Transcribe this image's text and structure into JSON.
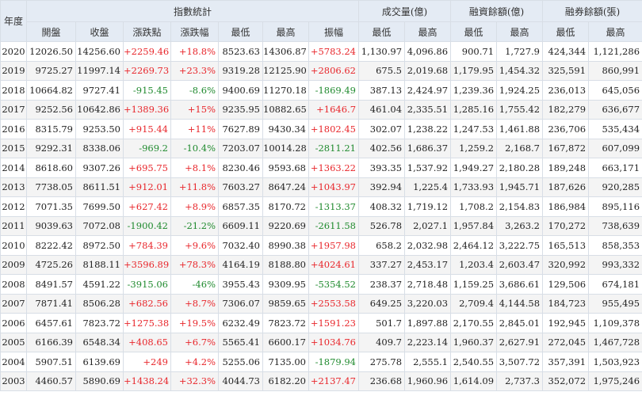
{
  "headers": {
    "year": "年度",
    "index_group": "指數統計",
    "volume_group": "成交量(億)",
    "margin_group": "融資餘額(億)",
    "short_group": "融券餘額(張)",
    "open": "開盤",
    "close": "收盤",
    "change_pts": "漲跌點",
    "change_pct": "漲跌幅",
    "low": "最低",
    "high": "最高",
    "amplitude": "振幅"
  },
  "colors": {
    "up": "#e8262b",
    "down": "#1f8a2e",
    "header_bg": "#e4ebf4",
    "stripe": "#f4f4f4"
  },
  "rows": [
    {
      "year": "2020",
      "open": "12026.50",
      "close": "14256.60",
      "chg": "+2259.46",
      "pct": "+18.8%",
      "low": "8523.63",
      "high": "14306.87",
      "amp": "+5783.24",
      "vol_low": "1,130.97",
      "vol_high": "4,096.86",
      "mg_low": "900.71",
      "mg_high": "1,727.9",
      "sh_low": "424,344",
      "sh_high": "1,121,286",
      "dir": "up"
    },
    {
      "year": "2019",
      "open": "9725.27",
      "close": "11997.14",
      "chg": "+2269.73",
      "pct": "+23.3%",
      "low": "9319.28",
      "high": "12125.90",
      "amp": "+2806.62",
      "vol_low": "675.5",
      "vol_high": "2,019.68",
      "mg_low": "1,179.95",
      "mg_high": "1,454.32",
      "sh_low": "325,591",
      "sh_high": "860,991",
      "dir": "up"
    },
    {
      "year": "2018",
      "open": "10664.82",
      "close": "9727.41",
      "chg": "-915.45",
      "pct": "-8.6%",
      "low": "9400.69",
      "high": "11270.18",
      "amp": "-1869.49",
      "vol_low": "387.13",
      "vol_high": "2,424.97",
      "mg_low": "1,239.36",
      "mg_high": "1,924.25",
      "sh_low": "236,013",
      "sh_high": "645,056",
      "dir": "down"
    },
    {
      "year": "2017",
      "open": "9252.56",
      "close": "10642.86",
      "chg": "+1389.36",
      "pct": "+15%",
      "low": "9235.95",
      "high": "10882.65",
      "amp": "+1646.7",
      "vol_low": "461.04",
      "vol_high": "2,335.51",
      "mg_low": "1,285.16",
      "mg_high": "1,755.42",
      "sh_low": "182,279",
      "sh_high": "636,677",
      "dir": "up"
    },
    {
      "year": "2016",
      "open": "8315.79",
      "close": "9253.50",
      "chg": "+915.44",
      "pct": "+11%",
      "low": "7627.89",
      "high": "9430.34",
      "amp": "+1802.45",
      "vol_low": "302.07",
      "vol_high": "1,238.22",
      "mg_low": "1,247.53",
      "mg_high": "1,461.88",
      "sh_low": "236,706",
      "sh_high": "535,434",
      "dir": "up"
    },
    {
      "year": "2015",
      "open": "9292.31",
      "close": "8338.06",
      "chg": "-969.2",
      "pct": "-10.4%",
      "low": "7203.07",
      "high": "10014.28",
      "amp": "-2811.21",
      "vol_low": "402.56",
      "vol_high": "1,686.37",
      "mg_low": "1,259.2",
      "mg_high": "2,168.7",
      "sh_low": "167,872",
      "sh_high": "607,099",
      "dir": "down"
    },
    {
      "year": "2014",
      "open": "8618.60",
      "close": "9307.26",
      "chg": "+695.75",
      "pct": "+8.1%",
      "low": "8230.46",
      "high": "9593.68",
      "amp": "+1363.22",
      "vol_low": "393.35",
      "vol_high": "1,537.92",
      "mg_low": "1,949.27",
      "mg_high": "2,180.28",
      "sh_low": "189,248",
      "sh_high": "663,171",
      "dir": "up"
    },
    {
      "year": "2013",
      "open": "7738.05",
      "close": "8611.51",
      "chg": "+912.01",
      "pct": "+11.8%",
      "low": "7603.27",
      "high": "8647.24",
      "amp": "+1043.97",
      "vol_low": "392.94",
      "vol_high": "1,225.4",
      "mg_low": "1,733.93",
      "mg_high": "1,945.71",
      "sh_low": "187,626",
      "sh_high": "920,285",
      "dir": "up"
    },
    {
      "year": "2012",
      "open": "7071.35",
      "close": "7699.50",
      "chg": "+627.42",
      "pct": "+8.9%",
      "low": "6857.35",
      "high": "8170.72",
      "amp": "-1313.37",
      "vol_low": "408.32",
      "vol_high": "1,719.12",
      "mg_low": "1,708.2",
      "mg_high": "2,154.83",
      "sh_low": "186,984",
      "sh_high": "895,116",
      "dir": "up",
      "amp_dir": "down"
    },
    {
      "year": "2011",
      "open": "9039.63",
      "close": "7072.08",
      "chg": "-1900.42",
      "pct": "-21.2%",
      "low": "6609.11",
      "high": "9220.69",
      "amp": "-2611.58",
      "vol_low": "526.78",
      "vol_high": "2,027.1",
      "mg_low": "1,957.84",
      "mg_high": "3,263.2",
      "sh_low": "170,272",
      "sh_high": "738,639",
      "dir": "down"
    },
    {
      "year": "2010",
      "open": "8222.42",
      "close": "8972.50",
      "chg": "+784.39",
      "pct": "+9.6%",
      "low": "7032.40",
      "high": "8990.38",
      "amp": "+1957.98",
      "vol_low": "658.2",
      "vol_high": "2,032.98",
      "mg_low": "2,464.12",
      "mg_high": "3,222.75",
      "sh_low": "165,513",
      "sh_high": "858,353",
      "dir": "up"
    },
    {
      "year": "2009",
      "open": "4725.26",
      "close": "8188.11",
      "chg": "+3596.89",
      "pct": "+78.3%",
      "low": "4164.19",
      "high": "8188.80",
      "amp": "+4024.61",
      "vol_low": "337.27",
      "vol_high": "2,453.17",
      "mg_low": "1,203.4",
      "mg_high": "2,603.47",
      "sh_low": "320,992",
      "sh_high": "993,332",
      "dir": "up"
    },
    {
      "year": "2008",
      "open": "8491.57",
      "close": "4591.22",
      "chg": "-3915.06",
      "pct": "-46%",
      "low": "3955.43",
      "high": "9309.95",
      "amp": "-5354.52",
      "vol_low": "238.37",
      "vol_high": "2,718.48",
      "mg_low": "1,159.25",
      "mg_high": "3,686.61",
      "sh_low": "129,506",
      "sh_high": "674,181",
      "dir": "down"
    },
    {
      "year": "2007",
      "open": "7871.41",
      "close": "8506.28",
      "chg": "+682.56",
      "pct": "+8.7%",
      "low": "7306.07",
      "high": "9859.65",
      "amp": "+2553.58",
      "vol_low": "649.25",
      "vol_high": "3,220.03",
      "mg_low": "2,709.4",
      "mg_high": "4,144.58",
      "sh_low": "184,723",
      "sh_high": "955,495",
      "dir": "up"
    },
    {
      "year": "2006",
      "open": "6457.61",
      "close": "7823.72",
      "chg": "+1275.38",
      "pct": "+19.5%",
      "low": "6232.49",
      "high": "7823.72",
      "amp": "+1591.23",
      "vol_low": "501.7",
      "vol_high": "1,897.88",
      "mg_low": "2,170.55",
      "mg_high": "2,845.01",
      "sh_low": "192,945",
      "sh_high": "1,109,378",
      "dir": "up"
    },
    {
      "year": "2005",
      "open": "6166.39",
      "close": "6548.34",
      "chg": "+408.65",
      "pct": "+6.7%",
      "low": "5565.41",
      "high": "6600.17",
      "amp": "+1034.76",
      "vol_low": "409.7",
      "vol_high": "2,223.14",
      "mg_low": "1,960.37",
      "mg_high": "2,627.91",
      "sh_low": "272,045",
      "sh_high": "1,467,728",
      "dir": "up"
    },
    {
      "year": "2004",
      "open": "5907.51",
      "close": "6139.69",
      "chg": "+249",
      "pct": "+4.2%",
      "low": "5255.06",
      "high": "7135.00",
      "amp": "-1879.94",
      "vol_low": "275.78",
      "vol_high": "2,555.1",
      "mg_low": "2,540.55",
      "mg_high": "3,507.72",
      "sh_low": "357,391",
      "sh_high": "1,503,923",
      "dir": "up",
      "amp_dir": "down"
    },
    {
      "year": "2003",
      "open": "4460.57",
      "close": "5890.69",
      "chg": "+1438.24",
      "pct": "+32.3%",
      "low": "4044.73",
      "high": "6182.20",
      "amp": "+2137.47",
      "vol_low": "236.68",
      "vol_high": "1,960.96",
      "mg_low": "1,614.09",
      "mg_high": "2,737.3",
      "sh_low": "352,072",
      "sh_high": "1,975,246",
      "dir": "up"
    }
  ]
}
